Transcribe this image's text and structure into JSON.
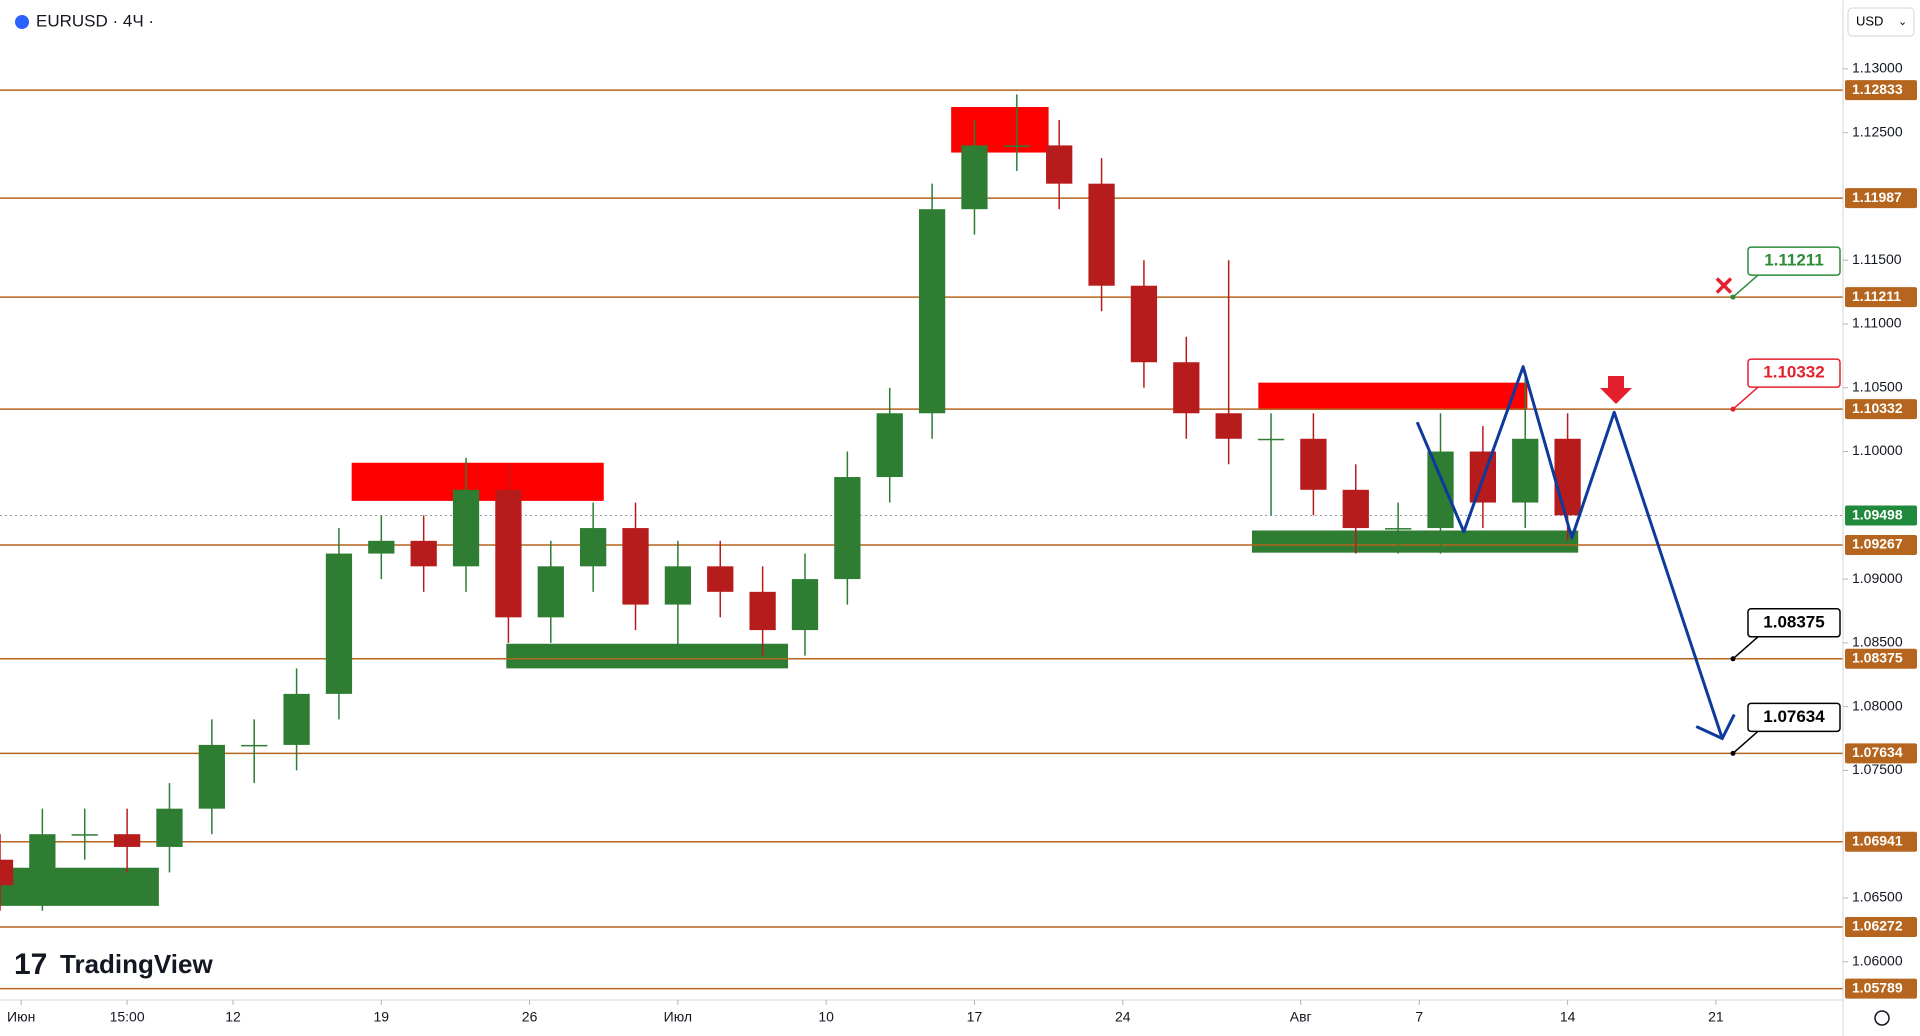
{
  "header": {
    "title": "EURUSD · 4Ч ·",
    "currency": "USD",
    "logo": "TradingView"
  },
  "chart_data": {
    "type": "candlestick",
    "up_color": "#2e7d32",
    "down_color": "#b71c1c",
    "x": [
      0,
      2,
      4,
      6,
      8,
      10,
      12,
      14,
      16,
      18,
      20,
      22,
      24,
      26,
      28,
      30,
      32,
      34,
      36,
      38,
      40,
      42,
      44,
      46,
      48,
      50,
      52,
      54,
      56,
      58,
      60,
      62,
      64,
      66,
      68,
      70,
      72,
      74
    ],
    "open": [
      1.068,
      1.066,
      1.07,
      1.07,
      1.069,
      1.072,
      1.077,
      1.077,
      1.081,
      1.092,
      1.093,
      1.091,
      1.097,
      1.087,
      1.091,
      1.094,
      1.088,
      1.091,
      1.089,
      1.086,
      1.09,
      1.098,
      1.103,
      1.119,
      1.124,
      1.124,
      1.121,
      1.113,
      1.107,
      1.103,
      1.101,
      1.101,
      1.097,
      1.094,
      1.094,
      1.1,
      1.096,
      1.101
    ],
    "high": [
      1.07,
      1.072,
      1.072,
      1.072,
      1.074,
      1.079,
      1.079,
      1.083,
      1.094,
      1.095,
      1.095,
      1.0995,
      1.099,
      1.093,
      1.096,
      1.096,
      1.093,
      1.093,
      1.091,
      1.092,
      1.1,
      1.105,
      1.121,
      1.126,
      1.128,
      1.126,
      1.123,
      1.115,
      1.109,
      1.115,
      1.103,
      1.103,
      1.099,
      1.096,
      1.103,
      1.102,
      1.106,
      1.103
    ],
    "low": [
      1.064,
      1.064,
      1.068,
      1.067,
      1.067,
      1.07,
      1.074,
      1.075,
      1.079,
      1.09,
      1.089,
      1.089,
      1.085,
      1.085,
      1.089,
      1.086,
      1.084,
      1.087,
      1.084,
      1.084,
      1.088,
      1.096,
      1.101,
      1.117,
      1.122,
      1.119,
      1.111,
      1.105,
      1.101,
      1.099,
      1.095,
      1.095,
      1.092,
      1.092,
      1.092,
      1.094,
      1.094,
      1.093
    ],
    "close": [
      1.066,
      1.07,
      1.07,
      1.069,
      1.072,
      1.077,
      1.077,
      1.081,
      1.092,
      1.093,
      1.091,
      1.097,
      1.087,
      1.091,
      1.094,
      1.088,
      1.091,
      1.089,
      1.086,
      1.09,
      1.098,
      1.103,
      1.119,
      1.124,
      1.124,
      1.121,
      1.113,
      1.107,
      1.103,
      1.101,
      1.101,
      1.097,
      1.094,
      1.094,
      1.1,
      1.096,
      1.101,
      1.095
    ],
    "xlim": [
      0,
      87
    ],
    "xticks": [
      {
        "value": 1,
        "label": "Июн"
      },
      {
        "value": 6,
        "label": "15:00"
      },
      {
        "value": 11,
        "label": "12"
      },
      {
        "value": 18,
        "label": "19"
      },
      {
        "value": 25,
        "label": "26"
      },
      {
        "value": 32,
        "label": "Июл"
      },
      {
        "value": 39,
        "label": "10"
      },
      {
        "value": 46,
        "label": "17"
      },
      {
        "value": 53,
        "label": "24"
      },
      {
        "value": 61.4,
        "label": "Авг"
      },
      {
        "value": 67,
        "label": "7"
      },
      {
        "value": 74,
        "label": "14"
      },
      {
        "value": 81,
        "label": "21"
      }
    ],
    "ylim": [
      1.057,
      1.1354
    ],
    "yticks": [
      {
        "value": 1.06,
        "label": "1.06000"
      },
      {
        "value": 1.065,
        "label": "1.06500"
      },
      {
        "value": 1.075,
        "label": "1.07500"
      },
      {
        "value": 1.08,
        "label": "1.08000"
      },
      {
        "value": 1.085,
        "label": "1.08500"
      },
      {
        "value": 1.09,
        "label": "1.09000"
      },
      {
        "value": 1.1,
        "label": "1.10000"
      },
      {
        "value": 1.105,
        "label": "1.10500"
      },
      {
        "value": 1.11,
        "label": "1.11000"
      },
      {
        "value": 1.115,
        "label": "1.11500"
      },
      {
        "value": 1.125,
        "label": "1.12500"
      },
      {
        "value": 1.13,
        "label": "1.13000"
      }
    ],
    "levels": [
      1.12833,
      1.11987,
      1.11211,
      1.10332,
      1.09267,
      1.08375,
      1.07634,
      1.06941,
      1.06272,
      1.05789
    ],
    "level_color": "#b5651d",
    "current_price": 1.09498,
    "current_color": "#1f8a3c",
    "zones": [
      {
        "x": [
          0,
          7.5
        ],
        "y": [
          1.06438,
          1.06737
        ],
        "color": "#2e7d32"
      },
      {
        "x": [
          16.6,
          28.5
        ],
        "y": [
          1.09613,
          1.09912
        ],
        "color": "#ff0000"
      },
      {
        "x": [
          23.9,
          37.2
        ],
        "y": [
          1.083,
          1.08493
        ],
        "color": "#2e7d32"
      },
      {
        "x": [
          44.9,
          49.5
        ],
        "y": [
          1.12344,
          1.12701
        ],
        "color": "#ff0000"
      },
      {
        "x": [
          59.4,
          72.1
        ],
        "y": [
          1.10327,
          1.1054
        ],
        "color": "#ff0000"
      },
      {
        "x": [
          59.1,
          74.5
        ],
        "y": [
          1.09207,
          1.09381
        ],
        "color": "#2e7d32"
      }
    ],
    "projection": {
      "x": [
        66.9,
        69.1,
        71.9,
        74.2,
        76.2,
        81.3
      ],
      "y": [
        1.1023,
        1.09371,
        1.10665,
        1.09323,
        1.10308,
        1.0775
      ],
      "color": "#0d3a9c"
    },
    "callouts": [
      {
        "value": 1.11211,
        "color": "#2e8b3a"
      },
      {
        "value": 1.10332,
        "color": "#e5202e"
      },
      {
        "value": 1.08375,
        "color": "#000000"
      },
      {
        "value": 1.07634,
        "color": "#000000"
      }
    ]
  }
}
